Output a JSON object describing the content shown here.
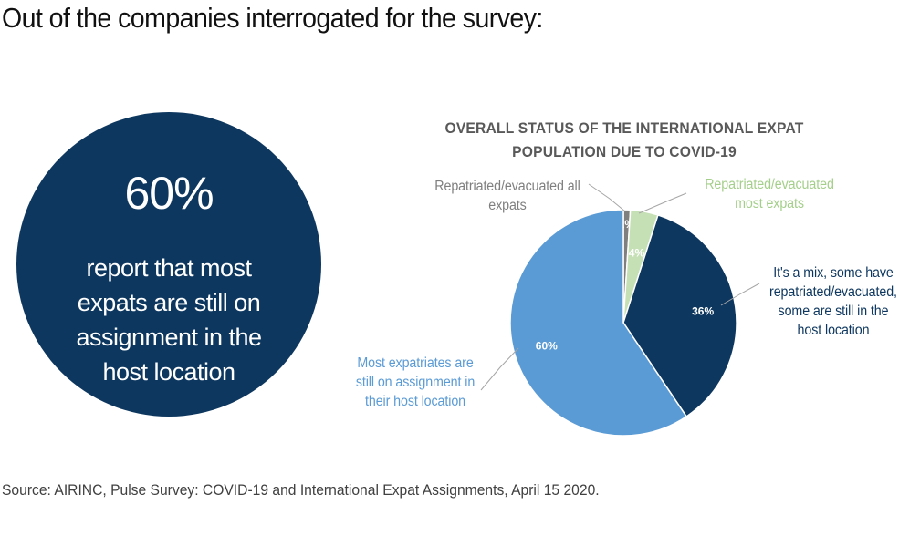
{
  "headline": "Out of the companies interrogated for the survey:",
  "callout": {
    "value": "60%",
    "text": "report that most expats are still on assignment in the host location",
    "color": "#0d375f"
  },
  "source": "Source: AIRINC, Pulse Survey: COVID-19 and International Expat Assignments, April 15 2020.",
  "chart_data": {
    "type": "pie",
    "title_lines": [
      "OVERALL STATUS OF THE INTERNATIONAL EXPAT",
      "POPULATION DUE TO COVID-19"
    ],
    "slices": [
      {
        "key": "all",
        "label": "Repatriated/evacuated all expats",
        "value": 1,
        "data_label": "1%",
        "color": "#7f7f7f"
      },
      {
        "key": "most",
        "label": "Repatriated/evacuated most expats",
        "value": 4,
        "data_label": "4%",
        "color": "#c5e0b4"
      },
      {
        "key": "mix",
        "label": "It's a mix, some have repatriated/evacuated, some are still in the host location",
        "value": 36,
        "data_label": "36%",
        "color": "#0d375f"
      },
      {
        "key": "still",
        "label": "Most expatriates are still on assignment in their host location",
        "value": 60,
        "data_label": "60%",
        "color": "#5b9bd5"
      }
    ],
    "start_angle_deg": 0,
    "direction": "clockwise"
  }
}
